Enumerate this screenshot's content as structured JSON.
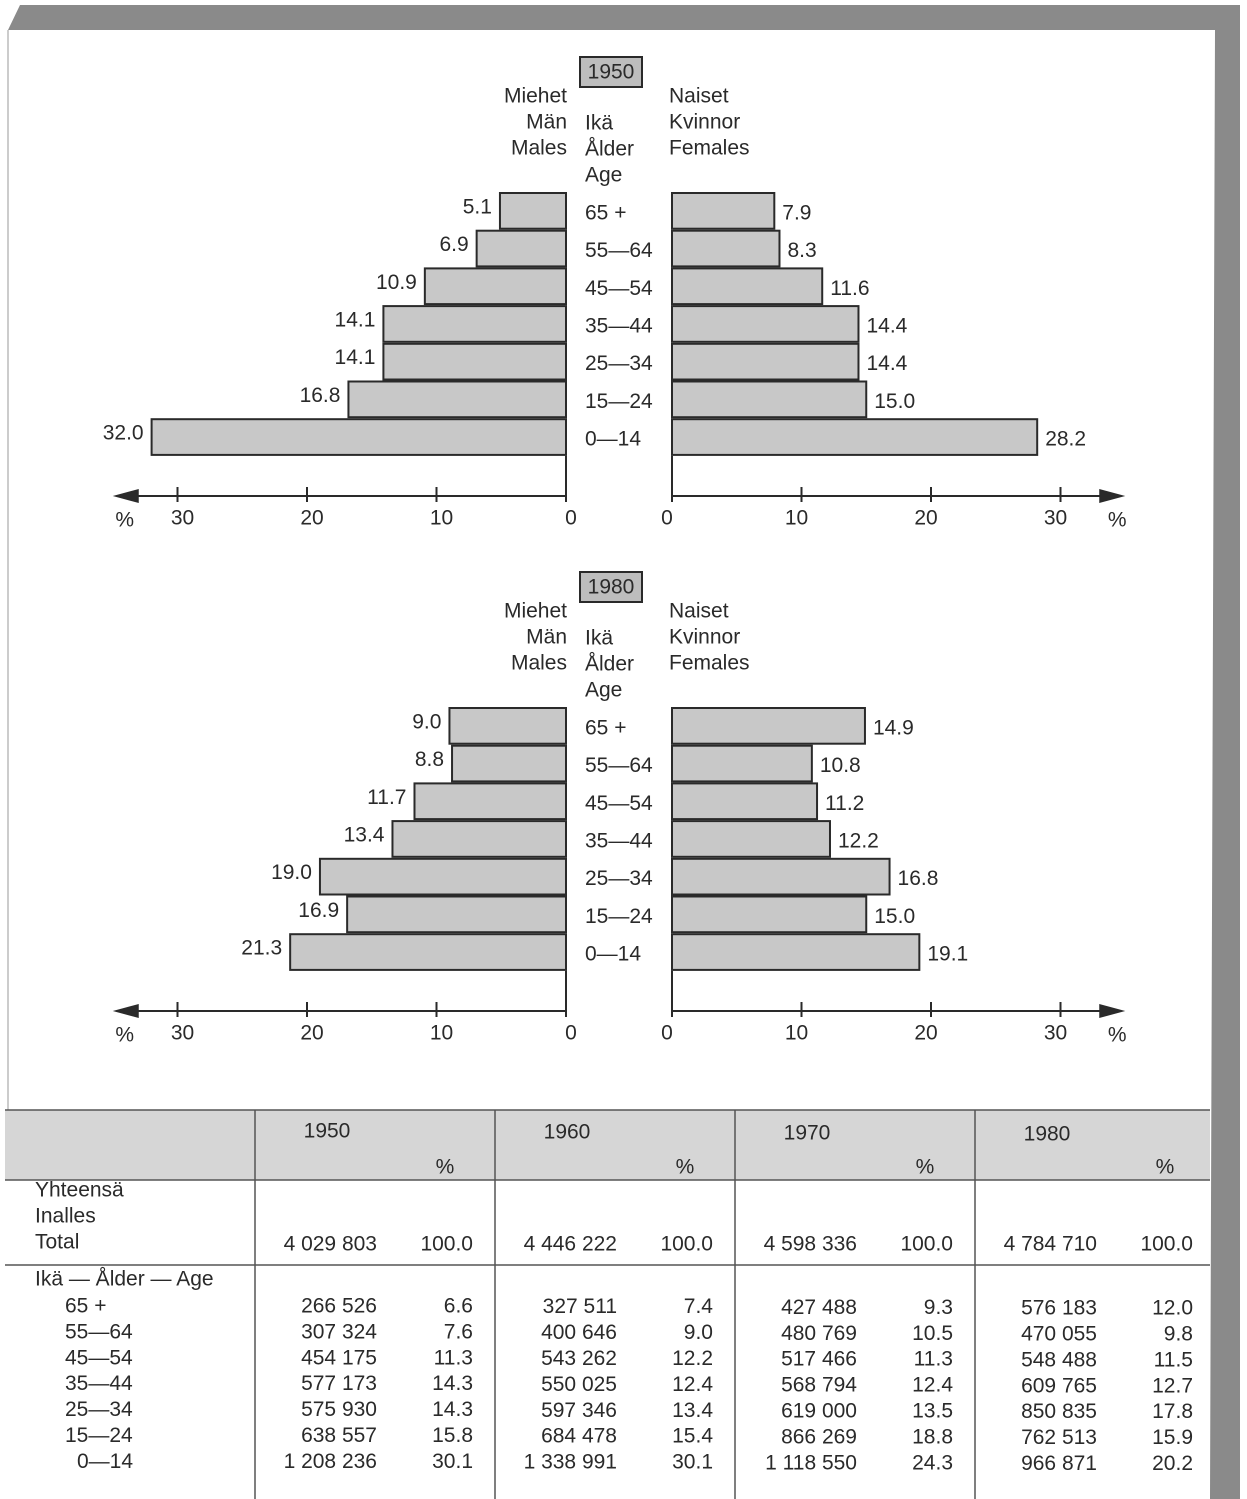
{
  "chart_data": [
    {
      "type": "pyramid",
      "title": "1950",
      "left_label": [
        "Miehet",
        "Män",
        "Males"
      ],
      "center_label": [
        "Ikä",
        "Ålder",
        "Age"
      ],
      "right_label": [
        "Naiset",
        "Kvinnor",
        "Females"
      ],
      "categories": [
        "65 +",
        "55—64",
        "45—54",
        "35—44",
        "25—34",
        "15—24",
        "0—14"
      ],
      "series": [
        {
          "name": "Males",
          "side": "left",
          "color": "#c8c8c8",
          "values": [
            5.1,
            6.9,
            10.9,
            14.1,
            14.1,
            16.8,
            32
          ],
          "value_labels": [
            "5.1",
            "6.9",
            "10.9",
            "14.1",
            "14.1",
            "16.8",
            "32.0"
          ]
        },
        {
          "name": "Females",
          "side": "right",
          "color": "#c8c8c8",
          "values": [
            7.9,
            8.3,
            11.6,
            14.4,
            14.4,
            15,
            28.2
          ],
          "value_labels": [
            "7.9",
            "8.3",
            "11.6",
            "14.4",
            "14.4",
            "15.0",
            "28.2"
          ]
        }
      ],
      "xlim": [
        0,
        35
      ],
      "xticks": [
        0,
        10,
        20,
        30
      ],
      "xlabel": "%"
    },
    {
      "type": "pyramid",
      "title": "1980",
      "left_label": [
        "Miehet",
        "Män",
        "Males"
      ],
      "center_label": [
        "Ikä",
        "Ålder",
        "Age"
      ],
      "right_label": [
        "Naiset",
        "Kvinnor",
        "Females"
      ],
      "categories": [
        "65 +",
        "55—64",
        "45—54",
        "35—44",
        "25—34",
        "15—24",
        "0—14"
      ],
      "series": [
        {
          "name": "Males",
          "side": "left",
          "color": "#c8c8c8",
          "values": [
            9,
            8.8,
            11.7,
            13.4,
            19,
            16.9,
            21.3
          ],
          "value_labels": [
            "9.0",
            "8.8",
            "11.7",
            "13.4",
            "19.0",
            "16.9",
            "21.3"
          ]
        },
        {
          "name": "Females",
          "side": "right",
          "color": "#c8c8c8",
          "values": [
            14.9,
            10.8,
            11.2,
            12.2,
            16.8,
            15,
            19.1
          ],
          "value_labels": [
            "14.9",
            "10.8",
            "11.2",
            "12.2",
            "16.8",
            "15.0",
            "19.1"
          ]
        }
      ],
      "xlim": [
        0,
        35
      ],
      "xticks": [
        0,
        10,
        20,
        30
      ],
      "xlabel": "%"
    }
  ],
  "table": {
    "columns": [
      {
        "year": "1950",
        "pct": "%"
      },
      {
        "year": "1960",
        "pct": "%"
      },
      {
        "year": "1970",
        "pct": "%"
      },
      {
        "year": "1980",
        "pct": "%"
      }
    ],
    "total_label": [
      "Yhteensä",
      "Inalles",
      "Total"
    ],
    "total": [
      [
        "4 029 803",
        "100.0"
      ],
      [
        "4 446 222",
        "100.0"
      ],
      [
        "4 598 336",
        "100.0"
      ],
      [
        "4 784 710",
        "100.0"
      ]
    ],
    "age_label": "Ikä — Ålder — Age",
    "rows": [
      {
        "age": "65 +",
        "cells": [
          [
            "266 526",
            "6.6"
          ],
          [
            "327 511",
            "7.4"
          ],
          [
            "427 488",
            "9.3"
          ],
          [
            "576 183",
            "12.0"
          ]
        ]
      },
      {
        "age": "55—64",
        "cells": [
          [
            "307 324",
            "7.6"
          ],
          [
            "400 646",
            "9.0"
          ],
          [
            "480 769",
            "10.5"
          ],
          [
            "470 055",
            "9.8"
          ]
        ]
      },
      {
        "age": "45—54",
        "cells": [
          [
            "454 175",
            "11.3"
          ],
          [
            "543 262",
            "12.2"
          ],
          [
            "517 466",
            "11.3"
          ],
          [
            "548 488",
            "11.5"
          ]
        ]
      },
      {
        "age": "35—44",
        "cells": [
          [
            "577 173",
            "14.3"
          ],
          [
            "550 025",
            "12.4"
          ],
          [
            "568 794",
            "12.4"
          ],
          [
            "609 765",
            "12.7"
          ]
        ]
      },
      {
        "age": "25—34",
        "cells": [
          [
            "575 930",
            "14.3"
          ],
          [
            "597 346",
            "13.4"
          ],
          [
            "619 000",
            "13.5"
          ],
          [
            "850 835",
            "17.8"
          ]
        ]
      },
      {
        "age": "15—24",
        "cells": [
          [
            "638 557",
            "15.8"
          ],
          [
            "684 478",
            "15.4"
          ],
          [
            "866 269",
            "18.8"
          ],
          [
            "762 513",
            "15.9"
          ]
        ]
      },
      {
        "age": "0—14",
        "cells": [
          [
            "1 208 236",
            "30.1"
          ],
          [
            "1 338 991",
            "30.1"
          ],
          [
            "1 118 550",
            "24.3"
          ],
          [
            "966 871",
            "20.2"
          ]
        ]
      }
    ]
  }
}
